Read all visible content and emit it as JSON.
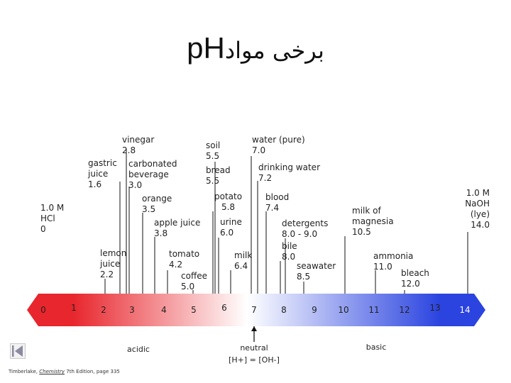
{
  "title": {
    "ph": "pH",
    "subject": "برخی مواد"
  },
  "scale": {
    "numbers": [
      "0",
      "1",
      "2",
      "3",
      "4",
      "5",
      "6",
      "7",
      "8",
      "9",
      "10",
      "11",
      "12",
      "13",
      "14"
    ],
    "acidic_label": "acidic",
    "neutral_label": "neutral",
    "neutral_formula": "[H+] = [OH-]",
    "basic_label": "basic",
    "colors": {
      "acid": "#e8262d",
      "neutral": "#ffffff",
      "base": "#2b44e0",
      "line": "#111111"
    }
  },
  "substances": [
    {
      "id": "hcl",
      "text": "1.0 M\nHCl\n0",
      "ph": 0
    },
    {
      "id": "gastric-juice",
      "text": "gastric\njuice\n1.6",
      "ph": 1.6
    },
    {
      "id": "lemon-juice",
      "text": "lemon\njuice\n2.2",
      "ph": 2.2
    },
    {
      "id": "vinegar",
      "text": "vinegar\n2.8",
      "ph": 2.8
    },
    {
      "id": "carbonated-beverage",
      "text": "carbonated\nbeverage\n3.0",
      "ph": 3.0
    },
    {
      "id": "orange",
      "text": "orange\n3.5",
      "ph": 3.5
    },
    {
      "id": "apple-juice",
      "text": "apple juice\n3.8",
      "ph": 3.8
    },
    {
      "id": "tomato",
      "text": "tomato\n4.2",
      "ph": 4.2
    },
    {
      "id": "coffee",
      "text": "coffee\n5.0",
      "ph": 5.0
    },
    {
      "id": "soil",
      "text": "soil\n5.5",
      "ph": 5.5
    },
    {
      "id": "bread",
      "text": "bread\n5.5",
      "ph": 5.5
    },
    {
      "id": "potato",
      "text": "potato\n5.8",
      "ph": 5.8
    },
    {
      "id": "urine",
      "text": "urine\n6.0",
      "ph": 6.0
    },
    {
      "id": "milk",
      "text": "milk\n6.4",
      "ph": 6.4
    },
    {
      "id": "pure-water",
      "text": "water (pure)\n7.0",
      "ph": 7.0
    },
    {
      "id": "drinking-water",
      "text": "drinking water\n7.2",
      "ph": 7.2
    },
    {
      "id": "blood",
      "text": "blood\n7.4",
      "ph": 7.4
    },
    {
      "id": "bile",
      "text": "bile\n8.0",
      "ph": 8.0
    },
    {
      "id": "detergents",
      "text": "detergents\n8.0 - 9.0",
      "ph": 8.5
    },
    {
      "id": "seawater",
      "text": "seawater\n8.5",
      "ph": 8.5
    },
    {
      "id": "milk-of-magnesia",
      "text": "milk of\nmagnesia\n10.5",
      "ph": 10.5
    },
    {
      "id": "ammonia",
      "text": "ammonia\n11.0",
      "ph": 11.0
    },
    {
      "id": "bleach",
      "text": "bleach\n12.0",
      "ph": 12.0
    },
    {
      "id": "naoh",
      "text": "1.0 M\nNaOH\n(lye)\n14.0",
      "ph": 14.0
    }
  ],
  "credit": {
    "author": "Timberlake, ",
    "book": "Chemistry",
    "rest": " 7th Edition, page 335"
  }
}
